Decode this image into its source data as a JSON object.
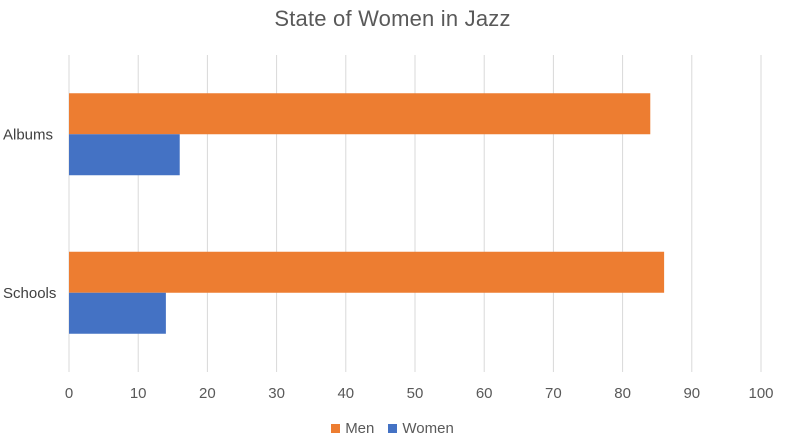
{
  "chart_data": {
    "type": "bar",
    "orientation": "horizontal",
    "title": "State of Women in Jazz",
    "categories": [
      "Albums",
      "Schools"
    ],
    "series": [
      {
        "name": "Men",
        "values": [
          84,
          86
        ],
        "color": "#ED7D31"
      },
      {
        "name": "Women",
        "values": [
          16,
          14
        ],
        "color": "#4472C4"
      }
    ],
    "xlim": [
      0,
      100
    ],
    "xticks": [
      "0",
      "10",
      "20",
      "30",
      "40",
      "50",
      "60",
      "70",
      "80",
      "90",
      "100"
    ],
    "xlabel": "",
    "ylabel": "",
    "grid": true,
    "legend": "bottom"
  }
}
